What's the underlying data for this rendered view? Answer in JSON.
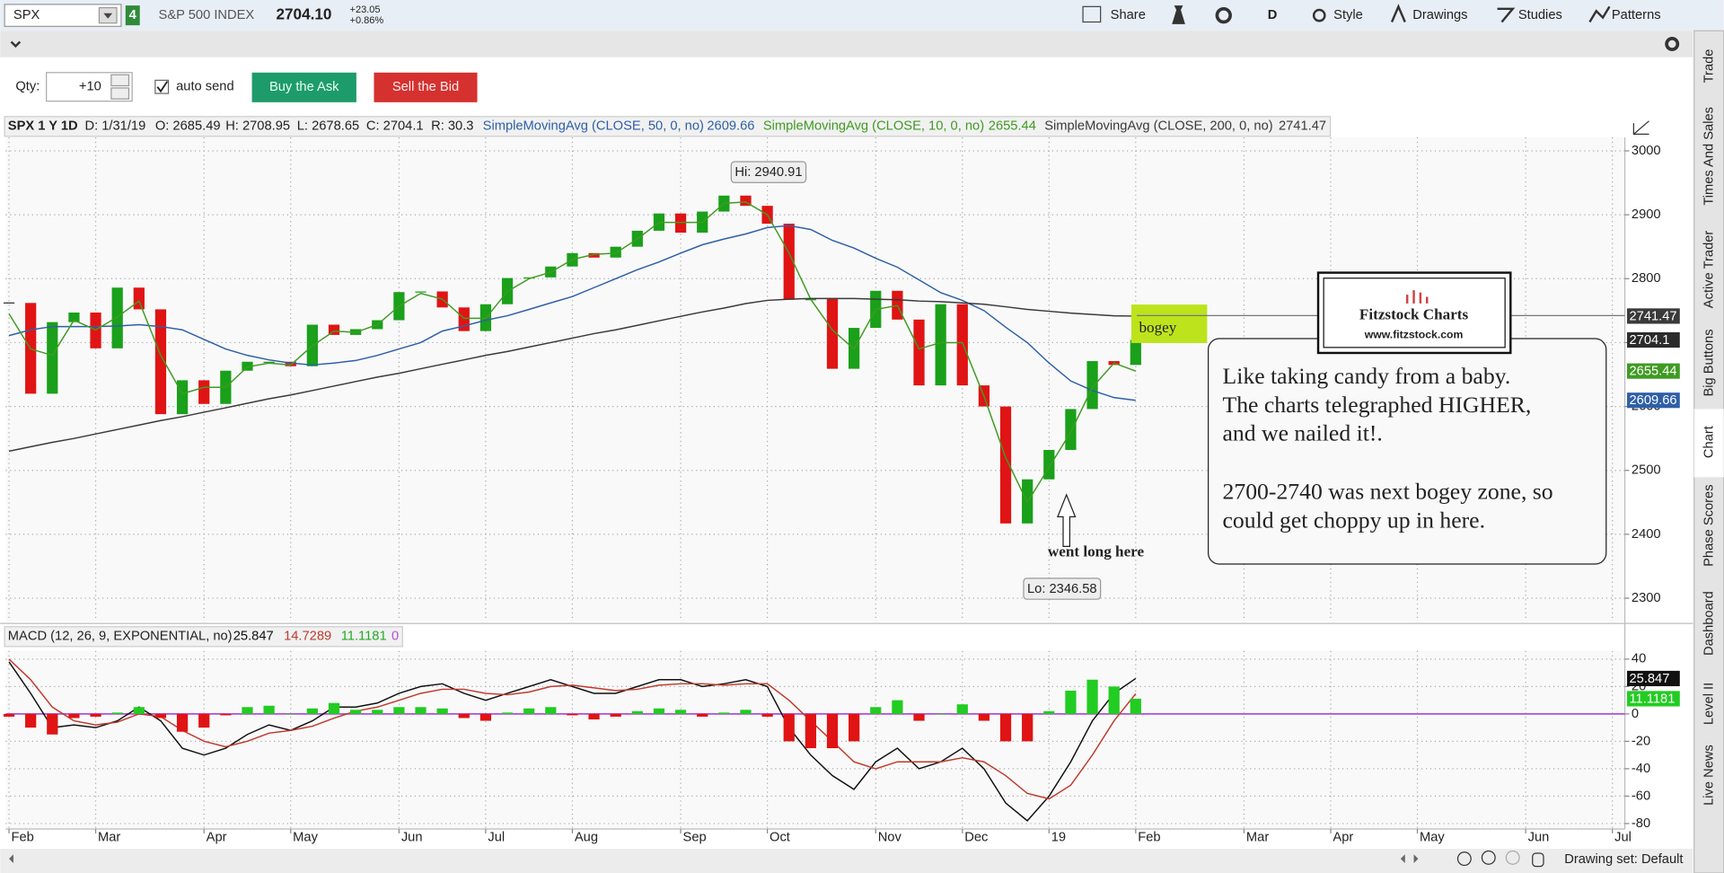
{
  "toolbar": {
    "symbol": "SPX",
    "link": "4",
    "name": "S&P 500 INDEX",
    "last": "2704.10",
    "change": "+23.05",
    "change_pct": "+0.86%",
    "buttons": [
      "Share",
      "D",
      "Style",
      "Drawings",
      "Studies",
      "Patterns"
    ]
  },
  "order_bar": {
    "qty_label": "Qty:",
    "qty": "+10",
    "auto_send": "auto send",
    "buy": "Buy the Ask",
    "sell": "Sell the Bid"
  },
  "side_tabs": [
    "Trade",
    "Times And Sales",
    "Active Trader",
    "Big Buttons",
    "Chart",
    "Phase Scores",
    "Dashboard",
    "Level II",
    "Live News"
  ],
  "status": "Drawing set: Default",
  "chart_data": [
    {
      "type": "candlestick",
      "title": "SPX 1 Y 1D",
      "info": [
        "D: 1/31/19",
        "O: 2685.49",
        "H: 2708.95",
        "L: 2678.65",
        "C: 2704.1",
        "R: 30.3"
      ],
      "categories": [
        "Feb",
        null,
        null,
        null,
        "Mar",
        null,
        null,
        null,
        null,
        "Apr",
        null,
        null,
        null,
        "May",
        null,
        null,
        null,
        null,
        "Jun",
        null,
        null,
        null,
        "Jul",
        null,
        null,
        null,
        "Aug",
        null,
        null,
        null,
        null,
        "Sep",
        null,
        null,
        null,
        "Oct",
        null,
        null,
        null,
        null,
        "Nov",
        null,
        null,
        null,
        "Dec",
        null,
        null,
        null,
        "19",
        null,
        null,
        null,
        "Feb",
        null,
        null,
        null,
        null,
        "Mar",
        null,
        null,
        null,
        "Apr",
        null,
        null,
        null,
        "May",
        null,
        null,
        null,
        null,
        "Jun",
        null,
        null,
        null,
        "Jul"
      ],
      "ylim": [
        2264,
        3021
      ],
      "yticks": [
        2300,
        2400,
        2500,
        2600,
        2700,
        2800,
        2900,
        3000
      ],
      "grid": true,
      "series": [
        {
          "style": "candle",
          "color": "#2b2b2b",
          "up_color": "#1aa01a",
          "down_color": "#e01414",
          "badge": true,
          "values": [
            2762,
            2620,
            2732,
            2747,
            2691,
            2786,
            2752,
            2588,
            2641,
            2604,
            2656,
            2670,
            2670,
            2663,
            2728,
            2712,
            2721,
            2735,
            2779,
            2780,
            2755,
            2718,
            2760,
            2801,
            2802,
            2819,
            2840,
            2833,
            2850,
            2875,
            2902,
            2872,
            2905,
            2930,
            2914,
            2886,
            2767,
            2768,
            2659,
            2723,
            2781,
            2736,
            2633,
            2760,
            2633,
            2600,
            2417,
            2486,
            2532,
            2596,
            2671,
            2665,
            2704.1,
            null,
            null,
            null,
            null,
            null,
            null,
            null,
            null,
            null,
            null,
            null,
            null,
            null,
            null,
            null,
            null,
            null,
            null,
            null,
            null,
            null,
            null
          ]
        },
        {
          "name": "SimpleMovingAvg (CLOSE, 50, 0, no)",
          "color": "#2e5fa8",
          "badge": true,
          "values": [
            2711,
            2720,
            2725,
            2725,
            2725,
            2726,
            2728,
            2725,
            2720,
            2705,
            2690,
            2680,
            2673,
            2668,
            2665,
            2668,
            2672,
            2680,
            2690,
            2700,
            2718,
            2726,
            2735,
            2742,
            2752,
            2762,
            2772,
            2786,
            2800,
            2814,
            2826,
            2840,
            2853,
            2862,
            2870,
            2880,
            2883,
            2877,
            2860,
            2848,
            2832,
            2818,
            2798,
            2778,
            2766,
            2750,
            2724,
            2700,
            2668,
            2640,
            2625,
            2614,
            2609.66,
            null,
            null,
            null,
            null,
            null,
            null,
            null,
            null,
            null,
            null,
            null,
            null,
            null,
            null,
            null,
            null,
            null,
            null,
            null,
            null,
            null,
            null
          ]
        },
        {
          "name": "SimpleMovingAvg (CLOSE, 10, 0, no)",
          "color": "#3f9b22",
          "badge": true,
          "values": [
            2745,
            2690,
            2680,
            2735,
            2720,
            2740,
            2765,
            2680,
            2620,
            2630,
            2630,
            2662,
            2668,
            2665,
            2695,
            2718,
            2716,
            2728,
            2757,
            2777,
            2768,
            2738,
            2738,
            2780,
            2800,
            2810,
            2830,
            2838,
            2840,
            2862,
            2888,
            2888,
            2888,
            2918,
            2920,
            2900,
            2840,
            2768,
            2720,
            2690,
            2752,
            2758,
            2690,
            2700,
            2700,
            2616,
            2520,
            2450,
            2505,
            2560,
            2630,
            2668,
            2655.44,
            null,
            null,
            null,
            null,
            null,
            null,
            null,
            null,
            null,
            null,
            null,
            null,
            null,
            null,
            null,
            null,
            null,
            null,
            null,
            null,
            null,
            null
          ]
        },
        {
          "name": "SimpleMovingAvg (CLOSE, 200, 0, no)",
          "color": "#3a3a3a",
          "badge": true,
          "values": [
            2530,
            2537,
            2544,
            2550,
            2557,
            2564,
            2571,
            2578,
            2584,
            2591,
            2598,
            2605,
            2612,
            2618,
            2625,
            2632,
            2639,
            2646,
            2652,
            2659,
            2666,
            2673,
            2680,
            2686,
            2693,
            2700,
            2707,
            2714,
            2720,
            2727,
            2734,
            2741,
            2748,
            2754,
            2761,
            2766,
            2768,
            2769,
            2769,
            2769,
            2768,
            2767,
            2765,
            2764,
            2762,
            2760,
            2756,
            2752,
            2749,
            2746,
            2744,
            2742,
            2741.47,
            null,
            null,
            null,
            null,
            null,
            null,
            null,
            null,
            null,
            null,
            null,
            null,
            null,
            null,
            null,
            null,
            null,
            null,
            null,
            null,
            null,
            null
          ]
        }
      ],
      "annotations": {
        "hi": "Hi: 2940.91",
        "lo": "Lo: 2346.58",
        "bogey": "bogey",
        "logo": "Fitzstock Charts",
        "site": "www.fitzstock.com",
        "note": [
          "Like taking candy from a baby.",
          "The charts telegraphed HIGHER,",
          "and we nailed it!.",
          "2700-2740 was next bogey zone, so",
          "could get choppy up in here."
        ],
        "arrow": "went long here"
      }
    },
    {
      "type": "macd",
      "title": "MACD (12, 26, 9, EXPONENTIAL, no)",
      "ylim": [
        -84,
        46
      ],
      "yticks": [
        40,
        20,
        0,
        -20,
        -40,
        -60,
        -80
      ],
      "grid": true,
      "zero_line": 0,
      "zero_color": "#b44fd6",
      "series": [
        {
          "color": "#111111",
          "badge": true,
          "values": [
            38,
            15,
            -10,
            -8,
            -10,
            -5,
            5,
            -5,
            -25,
            -30,
            -25,
            -15,
            -8,
            -12,
            -5,
            5,
            5,
            8,
            15,
            20,
            22,
            15,
            10,
            15,
            20,
            25,
            20,
            15,
            15,
            20,
            25,
            25,
            20,
            22,
            25,
            20,
            -10,
            -30,
            -45,
            -55,
            -35,
            -25,
            -40,
            -35,
            -25,
            -40,
            -65,
            -78,
            -60,
            -35,
            -5,
            15,
            25.847,
            null,
            null,
            null,
            null,
            null,
            null,
            null,
            null,
            null,
            null,
            null,
            null,
            null,
            null,
            null,
            null,
            null,
            null,
            null,
            null,
            null,
            null
          ]
        },
        {
          "color": "#c0392b",
          "values": [
            40,
            25,
            5,
            -5,
            -8,
            -6,
            0,
            -2,
            -12,
            -20,
            -24,
            -20,
            -14,
            -12,
            -9,
            -3,
            2,
            5,
            10,
            15,
            18,
            18,
            15,
            14,
            16,
            20,
            21,
            19,
            17,
            18,
            21,
            22,
            22,
            21,
            22,
            22,
            10,
            -5,
            -20,
            -35,
            -40,
            -35,
            -35,
            -35,
            -32,
            -35,
            -45,
            -58,
            -62,
            -52,
            -30,
            -5,
            14.7289,
            null,
            null,
            null,
            null,
            null,
            null,
            null,
            null,
            null,
            null,
            null,
            null,
            null,
            null,
            null,
            null,
            null,
            null,
            null,
            null,
            null,
            null
          ]
        },
        {
          "style": "histogram",
          "color": "#22cc22",
          "down_color": "#e01414",
          "badge": true,
          "values": [
            -2,
            -10,
            -15,
            -3,
            -2,
            1,
            5,
            -3,
            -13,
            -10,
            -1,
            5,
            6,
            0,
            4,
            8,
            3,
            3,
            5,
            5,
            4,
            -3,
            -5,
            1,
            4,
            5,
            -1,
            -4,
            -2,
            2,
            4,
            3,
            -2,
            1,
            3,
            -2,
            -20,
            -25,
            -25,
            -20,
            5,
            10,
            -5,
            0,
            7,
            -5,
            -20,
            -20,
            2,
            17,
            25,
            20,
            11.1181,
            null,
            null,
            null,
            null,
            null,
            null,
            null,
            null,
            null,
            null,
            null,
            null,
            null,
            null,
            null,
            null,
            null,
            null,
            null,
            null,
            null,
            null
          ]
        }
      ]
    }
  ]
}
